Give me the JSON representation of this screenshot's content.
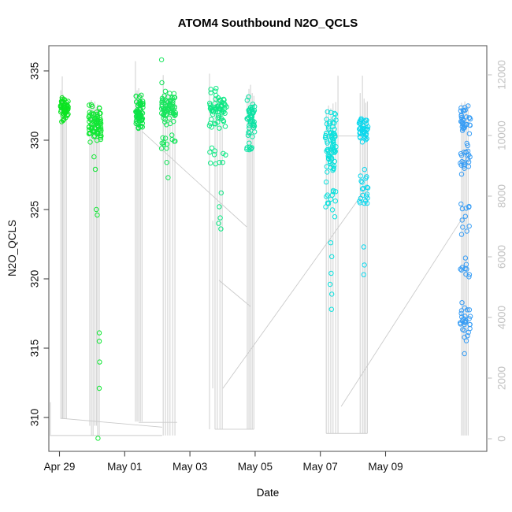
{
  "chart_data": {
    "type": "scatter",
    "title": "ATOM4 Southbound N2O_QCLS",
    "xlabel": "Date",
    "ylabel": "N2O_QCLS",
    "x_unit": "days since Apr 29",
    "x_ticks": [
      {
        "label": "Apr 29",
        "day": 0
      },
      {
        "label": "May 01",
        "day": 2
      },
      {
        "label": "May 03",
        "day": 4
      },
      {
        "label": "May 05",
        "day": 6
      },
      {
        "label": "May 07",
        "day": 8
      },
      {
        "label": "May 09",
        "day": 10
      }
    ],
    "y_left_ticks": [
      310,
      315,
      320,
      325,
      330,
      335
    ],
    "y_left_range": [
      307.6,
      336.8
    ],
    "right_axis": {
      "ticks": [
        0,
        2000,
        4000,
        6000,
        8000,
        10000,
        12000
      ],
      "color": "#c3c3c3"
    },
    "grid": false,
    "legend": false,
    "point_style": {
      "shape": "open-circle",
      "radius": 2.7,
      "stroke_width": 1
    },
    "trace_color": "#cacaca",
    "clusters": [
      {
        "name": "apr29",
        "color": "#00e418",
        "x": [
          0.02,
          0.27
        ],
        "bands": [
          {
            "v": [
              331.3,
              333.3
            ],
            "n": 58
          }
        ],
        "singles": []
      },
      {
        "name": "apr30",
        "color": "#06e72b",
        "x": [
          0.9,
          1.28
        ],
        "bands": [
          {
            "v": [
              329.5,
              333.0
            ],
            "n": 78
          }
        ],
        "singles": [
          [
            1.06,
            328.8
          ],
          [
            1.1,
            327.9
          ],
          [
            1.13,
            325.0
          ],
          [
            1.16,
            324.6
          ],
          [
            1.22,
            316.1
          ],
          [
            1.22,
            315.5
          ],
          [
            1.23,
            314.0
          ],
          [
            1.22,
            312.1
          ],
          [
            1.18,
            308.5
          ]
        ]
      },
      {
        "name": "may01a",
        "color": "#00e33e",
        "x": [
          2.32,
          2.56
        ],
        "bands": [
          {
            "v": [
              330.7,
              333.4
            ],
            "n": 66
          }
        ],
        "singles": []
      },
      {
        "name": "may01b",
        "color": "#0ce455",
        "x": [
          3.13,
          3.56
        ],
        "bands": [
          {
            "v": [
              331.0,
              333.6
            ],
            "n": 72
          },
          {
            "v": [
              329.0,
              330.9
            ],
            "n": 12
          }
        ],
        "singles": [
          [
            3.13,
            335.8
          ],
          [
            3.14,
            334.15
          ],
          [
            3.29,
            328.4
          ],
          [
            3.33,
            327.3
          ]
        ]
      },
      {
        "name": "may03a",
        "color": "#00e77e",
        "x": [
          4.6,
          5.13
        ],
        "bands": [
          {
            "v": [
              330.4,
              334.3
            ],
            "n": 62
          },
          {
            "v": [
              327.6,
              330.3
            ],
            "n": 10
          }
        ],
        "singles": [
          [
            4.96,
            326.2
          ],
          [
            4.9,
            325.2
          ],
          [
            4.93,
            324.4
          ],
          [
            4.88,
            324.0
          ],
          [
            4.95,
            323.6
          ]
        ]
      },
      {
        "name": "may03b",
        "color": "#00e2a0",
        "x": [
          5.74,
          5.99
        ],
        "bands": [
          {
            "v": [
              330.2,
              333.3
            ],
            "n": 48
          },
          {
            "v": [
              328.8,
              330.1
            ],
            "n": 8
          }
        ],
        "singles": []
      },
      {
        "name": "may06a",
        "color": "#00e0dc",
        "x": [
          8.15,
          8.49
        ],
        "bands": [
          {
            "v": [
              327.5,
              332.4
            ],
            "n": 75
          },
          {
            "v": [
              324.2,
              327.4
            ],
            "n": 14
          }
        ],
        "singles": [
          [
            8.32,
            322.6
          ],
          [
            8.35,
            321.6
          ],
          [
            8.33,
            320.4
          ],
          [
            8.3,
            319.6
          ],
          [
            8.35,
            318.9
          ],
          [
            8.34,
            317.8
          ]
        ]
      },
      {
        "name": "may06b",
        "color": "#00d7ee",
        "x": [
          9.18,
          9.46
        ],
        "bands": [
          {
            "v": [
              329.6,
              332.0
            ],
            "n": 42
          },
          {
            "v": [
              323.3,
              329.5
            ],
            "n": 20
          }
        ],
        "singles": [
          [
            9.33,
            322.3
          ],
          [
            9.35,
            321.0
          ],
          [
            9.33,
            320.3
          ]
        ]
      },
      {
        "name": "may11",
        "color": "#2f99f5",
        "x": [
          12.28,
          12.6
        ],
        "bands": [
          {
            "v": [
              330.3,
              332.8
            ],
            "n": 32
          },
          {
            "v": [
              327.0,
              330.2
            ],
            "n": 22
          },
          {
            "v": [
              322.6,
              326.8
            ],
            "n": 11
          },
          {
            "v": [
              319.8,
              321.3
            ],
            "n": 9
          },
          {
            "v": [
              315.3,
              318.5
            ],
            "n": 30
          }
        ],
        "singles": [
          [
            12.45,
            321.5
          ],
          [
            12.42,
            314.6
          ]
        ]
      }
    ],
    "trace": {
      "verticals": [
        [
          0.04,
          333.6,
          309.9
        ],
        [
          0.085,
          334.6,
          309.9
        ],
        [
          0.11,
          333.3,
          309.9
        ],
        [
          0.16,
          333.1,
          309.9
        ],
        [
          0.21,
          332.8,
          309.9
        ],
        [
          0.93,
          332.8,
          309.4
        ],
        [
          0.98,
          332.9,
          308.7
        ],
        [
          1.03,
          332.6,
          308.7
        ],
        [
          1.08,
          332.8,
          309.4
        ],
        [
          1.13,
          332.4,
          309.4
        ],
        [
          1.17,
          332.6,
          308.7
        ],
        [
          1.22,
          332.3,
          308.7
        ],
        [
          2.33,
          335.7,
          309.7
        ],
        [
          2.38,
          333.6,
          309.7
        ],
        [
          2.43,
          333.75,
          309.7
        ],
        [
          2.48,
          333.4,
          309.7
        ],
        [
          2.53,
          333.3,
          309.7
        ],
        [
          3.18,
          334.7,
          308.7
        ],
        [
          3.25,
          333.4,
          308.7
        ],
        [
          3.32,
          333.6,
          308.7
        ],
        [
          3.39,
          333.3,
          308.7
        ],
        [
          3.47,
          333.2,
          308.7
        ],
        [
          3.54,
          333.0,
          308.7
        ],
        [
          4.6,
          334.8,
          309.15
        ],
        [
          4.7,
          324.2,
          312.1
        ],
        [
          4.77,
          333.2,
          309.15
        ],
        [
          4.84,
          333.0,
          309.15
        ],
        [
          4.92,
          333.1,
          309.15
        ],
        [
          4.99,
          332.9,
          309.15
        ],
        [
          5.76,
          333.3,
          309.15
        ],
        [
          5.81,
          333.7,
          309.15
        ],
        [
          5.86,
          334.0,
          309.15
        ],
        [
          5.91,
          333.4,
          309.15
        ],
        [
          5.96,
          333.2,
          309.15
        ],
        [
          8.18,
          332.2,
          308.85
        ],
        [
          8.25,
          332.5,
          308.85
        ],
        [
          8.32,
          332.3,
          308.85
        ],
        [
          8.39,
          332.65,
          308.85
        ],
        [
          8.47,
          332.75,
          308.85
        ],
        [
          8.54,
          334.65,
          308.85
        ],
        [
          9.22,
          333.4,
          308.85
        ],
        [
          9.29,
          334.65,
          308.85
        ],
        [
          9.34,
          333.0,
          308.85
        ],
        [
          9.39,
          332.7,
          308.85
        ],
        [
          9.44,
          332.8,
          308.85
        ],
        [
          12.33,
          332.7,
          308.7
        ],
        [
          12.38,
          332.55,
          308.7
        ],
        [
          12.43,
          332.8,
          308.7
        ],
        [
          12.48,
          332.4,
          308.7
        ],
        [
          12.53,
          332.6,
          308.7
        ]
      ],
      "polylines": [
        [
          [
            0.04,
            309.94
          ],
          [
            3.15,
            309.3
          ]
        ],
        [
          [
            -0.28,
            311.1
          ],
          [
            -0.28,
            308.7
          ],
          [
            3.15,
            308.7
          ]
        ],
        [
          [
            2.43,
            309.65
          ],
          [
            3.61,
            309.65
          ]
        ],
        [
          [
            2.55,
            330.6
          ],
          [
            5.74,
            323.75
          ]
        ],
        [
          [
            4.89,
            319.9
          ],
          [
            5.86,
            318.0
          ]
        ],
        [
          [
            5.01,
            312.1
          ],
          [
            9.43,
            326.6
          ]
        ],
        [
          [
            8.64,
            310.8
          ],
          [
            12.36,
            324.4
          ]
        ],
        [
          [
            8.42,
            330.3
          ],
          [
            9.31,
            330.3
          ]
        ],
        [
          [
            4.77,
            309.15
          ],
          [
            5.96,
            309.15
          ]
        ],
        [
          [
            8.18,
            308.85
          ],
          [
            9.44,
            308.85
          ]
        ]
      ]
    }
  }
}
